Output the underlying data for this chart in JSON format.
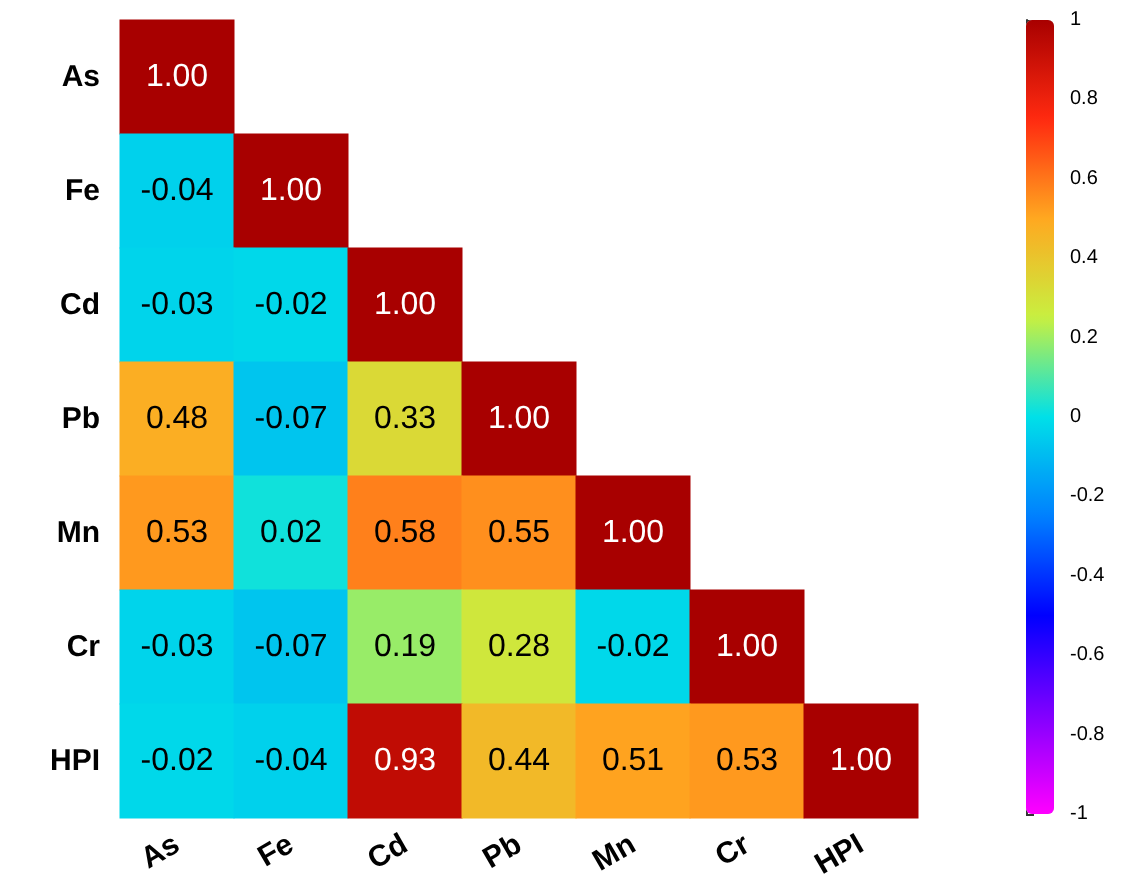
{
  "chart_data": {
    "type": "heatmap",
    "categories": [
      "As",
      "Fe",
      "Cd",
      "Pb",
      "Mn",
      "Cr",
      "HPI"
    ],
    "y_categories": [
      "As",
      "Fe",
      "Cd",
      "Pb",
      "Mn",
      "Cr",
      "HPI"
    ],
    "cells": [
      [
        1.0,
        null,
        null,
        null,
        null,
        null,
        null
      ],
      [
        -0.04,
        1.0,
        null,
        null,
        null,
        null,
        null
      ],
      [
        -0.03,
        -0.02,
        1.0,
        null,
        null,
        null,
        null
      ],
      [
        0.48,
        -0.07,
        0.33,
        1.0,
        null,
        null,
        null
      ],
      [
        0.53,
        0.02,
        0.58,
        0.55,
        1.0,
        null,
        null
      ],
      [
        -0.03,
        -0.07,
        0.19,
        0.28,
        -0.02,
        1.0,
        null
      ],
      [
        -0.02,
        -0.04,
        0.93,
        0.44,
        0.51,
        0.53,
        1.0
      ]
    ],
    "cell_labels": [
      [
        "1.00",
        null,
        null,
        null,
        null,
        null,
        null
      ],
      [
        "-0.04",
        "1.00",
        null,
        null,
        null,
        null,
        null
      ],
      [
        "-0.03",
        "-0.02",
        "1.00",
        null,
        null,
        null,
        null
      ],
      [
        "0.48",
        "-0.07",
        "0.33",
        "1.00",
        null,
        null,
        null
      ],
      [
        "0.53",
        "0.02",
        "0.58",
        "0.55",
        "1.00",
        null,
        null
      ],
      [
        "-0.03",
        "-0.07",
        "0.19",
        "0.28",
        "-0.02",
        "1.00",
        null
      ],
      [
        "-0.02",
        "-0.04",
        "0.93",
        "0.44",
        "0.51",
        "0.53",
        "1.00"
      ]
    ],
    "clim": [
      -1,
      1
    ],
    "cticks": [
      -1,
      -0.8,
      -0.6,
      -0.4,
      -0.2,
      0,
      0.2,
      0.4,
      0.6,
      0.8,
      1
    ]
  }
}
